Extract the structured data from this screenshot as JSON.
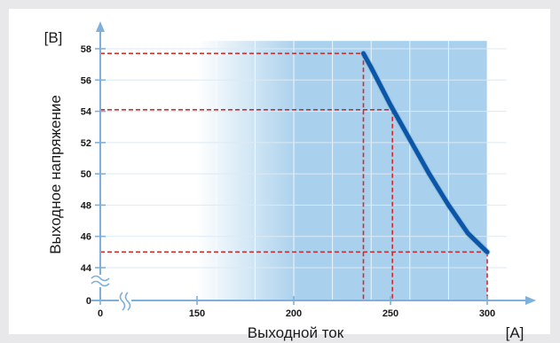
{
  "chart_data": {
    "type": "line",
    "title": "",
    "xlabel": "Выходной ток",
    "ylabel": "Выходное напряжение",
    "x_unit": "[A]",
    "y_unit": "[B]",
    "x_ticks": [
      0,
      150,
      200,
      250,
      300
    ],
    "y_ticks": [
      0,
      44,
      46,
      48,
      50,
      52,
      54,
      56,
      58
    ],
    "xlim": [
      0,
      310
    ],
    "ylim": [
      0,
      58.5
    ],
    "axis_breaks": [
      "x",
      "y"
    ],
    "shaded_region_x": [
      150,
      300
    ],
    "grid": true,
    "series": [
      {
        "x": [
          236,
          240,
          245,
          250,
          255,
          260,
          265,
          270,
          275,
          280,
          285,
          290,
          295,
          300
        ],
        "y": [
          57.7,
          56.8,
          55.6,
          54.4,
          53.3,
          52.2,
          51.1,
          50.0,
          49.0,
          48.0,
          47.1,
          46.2,
          45.6,
          45.0
        ]
      }
    ],
    "reference_lines": [
      {
        "y": 57.7,
        "x": 236
      },
      {
        "y": 54.1,
        "x": 251
      },
      {
        "y": 45.0,
        "x": 300
      }
    ],
    "colors": {
      "background": "#e8e8ea",
      "plot_bg": "#ffffff",
      "shade": "#a9d0ec",
      "axis": "#7fb0dc",
      "curve": "#0a56a8",
      "ref_lines": "#d42a2a"
    }
  }
}
